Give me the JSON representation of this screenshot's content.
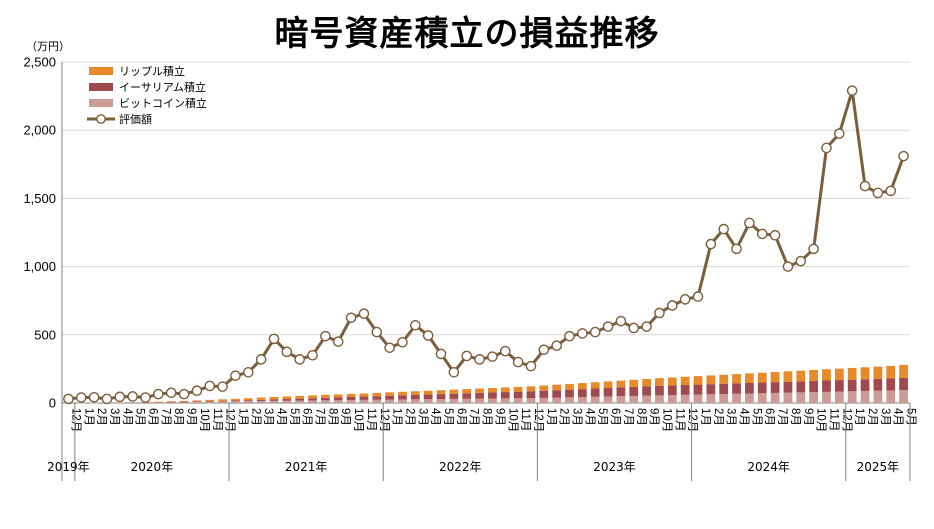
{
  "chart_data": {
    "type": "bar",
    "title": "暗号資産積立の損益推移",
    "ylabel": "（万円）",
    "ylim": [
      0,
      2500
    ],
    "y_ticks": [
      "0",
      "500",
      "1,000",
      "1,500",
      "2,000",
      "2,500"
    ],
    "grid": true,
    "legend_position": "top-left",
    "legend": [
      "リップル積立",
      "イーサリアム積立",
      "ビットコイン積立",
      "評価額"
    ],
    "colors": {
      "ripple": "#E8892A",
      "ethereum": "#9E4A4E",
      "bitcoin": "#CC9B96",
      "value_line": "#7B5E3C",
      "marker_fill": "#FFFFFF"
    },
    "x": [
      "12月",
      "1月",
      "2月",
      "3月",
      "4月",
      "5月",
      "6月",
      "7月",
      "8月",
      "9月",
      "10月",
      "11月",
      "12月",
      "1月",
      "2月",
      "3月",
      "4月",
      "5月",
      "6月",
      "7月",
      "8月",
      "9月",
      "10月",
      "11月",
      "12月",
      "1月",
      "2月",
      "3月",
      "4月",
      "5月",
      "6月",
      "7月",
      "8月",
      "9月",
      "10月",
      "11月",
      "12月",
      "1月",
      "2月",
      "3月",
      "4月",
      "5月",
      "6月",
      "7月",
      "8月",
      "9月",
      "10月",
      "11月",
      "12月",
      "1月",
      "2月",
      "3月",
      "4月",
      "5月",
      "6月",
      "7月",
      "8月",
      "9月",
      "10月",
      "11月",
      "12月",
      "1月",
      "2月",
      "3月",
      "4月",
      "5月"
    ],
    "year_groups": [
      {
        "label": "2019年",
        "count": 1
      },
      {
        "label": "2020年",
        "count": 12
      },
      {
        "label": "2021年",
        "count": 12
      },
      {
        "label": "2022年",
        "count": 12
      },
      {
        "label": "2023年",
        "count": 12
      },
      {
        "label": "2024年",
        "count": 12
      },
      {
        "label": "2025年",
        "count": 5
      }
    ],
    "series": [
      {
        "name": "ビットコイン積立",
        "key": "bitcoin",
        "kind": "stacked-bar",
        "values": [
          1,
          2,
          3,
          4,
          5,
          6,
          7,
          8,
          9,
          9,
          10,
          11,
          12,
          13,
          14,
          15,
          16,
          17,
          18,
          19,
          20,
          21,
          22,
          23,
          24,
          25,
          26,
          27,
          28,
          29,
          30,
          31,
          32,
          33,
          34,
          35,
          36,
          38,
          40,
          42,
          44,
          46,
          48,
          50,
          52,
          54,
          56,
          58,
          60,
          62,
          64,
          66,
          68,
          70,
          72,
          74,
          76,
          78,
          80,
          82,
          84,
          86,
          88,
          90,
          92,
          94
        ]
      },
      {
        "name": "イーサリアム積立",
        "key": "ethereum",
        "kind": "stacked-bar",
        "values": [
          0,
          0,
          0,
          0,
          0,
          0,
          0,
          0,
          1,
          1,
          2,
          3,
          4,
          5,
          6,
          8,
          10,
          12,
          14,
          16,
          18,
          20,
          22,
          24,
          26,
          28,
          30,
          32,
          34,
          36,
          38,
          40,
          42,
          44,
          46,
          48,
          50,
          52,
          54,
          56,
          58,
          60,
          62,
          64,
          66,
          68,
          70,
          71,
          72,
          73,
          74,
          75,
          76,
          77,
          78,
          79,
          80,
          81,
          82,
          83,
          84,
          85,
          86,
          87,
          88,
          90
        ]
      },
      {
        "name": "リップル積立",
        "key": "ripple",
        "kind": "stacked-bar",
        "values": [
          0,
          0,
          0,
          0,
          0,
          0,
          1,
          2,
          3,
          5,
          7,
          9,
          11,
          13,
          15,
          17,
          18,
          19,
          20,
          21,
          22,
          22,
          23,
          23,
          24,
          25,
          26,
          27,
          28,
          29,
          30,
          31,
          32,
          33,
          34,
          35,
          36,
          38,
          40,
          42,
          44,
          46,
          48,
          50,
          52,
          54,
          56,
          58,
          60,
          62,
          64,
          66,
          68,
          70,
          72,
          74,
          76,
          78,
          80,
          82,
          84,
          86,
          88,
          90,
          92,
          95
        ]
      },
      {
        "name": "評価額",
        "key": "value_line",
        "kind": "line",
        "values": [
          30,
          40,
          42,
          30,
          45,
          48,
          40,
          65,
          75,
          65,
          90,
          125,
          120,
          200,
          225,
          320,
          470,
          375,
          320,
          350,
          490,
          450,
          625,
          655,
          520,
          405,
          445,
          570,
          495,
          360,
          225,
          345,
          320,
          340,
          380,
          300,
          270,
          390,
          420,
          490,
          510,
          520,
          560,
          600,
          550,
          560,
          660,
          715,
          760,
          780,
          1165,
          1275,
          1130,
          1320,
          1240,
          1230,
          1000,
          1040,
          1130,
          1870,
          1975,
          2290,
          1590,
          1540,
          1555,
          1810
        ]
      }
    ]
  }
}
